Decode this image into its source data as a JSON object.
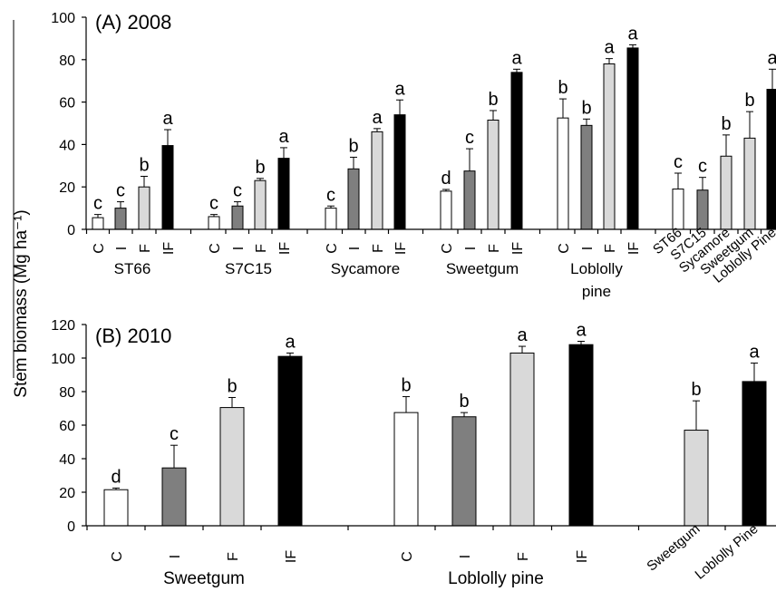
{
  "y_axis_label": "Stem biomass (Mg ha⁻¹)",
  "colors": {
    "C": "#ffffff",
    "I": "#7f7f7f",
    "F": "#d9d9d9",
    "IF": "#000000",
    "stroke": "#000000"
  },
  "chart_data": [
    {
      "type": "bar",
      "title": "(A) 2008",
      "ylim": [
        0,
        100
      ],
      "yticks": [
        0,
        20,
        40,
        60,
        80,
        100
      ],
      "groups": [
        {
          "name": "ST66",
          "bars": [
            {
              "label": "C",
              "value": 5.5,
              "error": 1.5,
              "letter": "c"
            },
            {
              "label": "I",
              "value": 10,
              "error": 3,
              "letter": "c"
            },
            {
              "label": "F",
              "value": 20,
              "error": 5,
              "letter": "b"
            },
            {
              "label": "IF",
              "value": 39.5,
              "error": 7.5,
              "letter": "a"
            }
          ]
        },
        {
          "name": "S7C15",
          "bars": [
            {
              "label": "C",
              "value": 6,
              "error": 1,
              "letter": "c"
            },
            {
              "label": "I",
              "value": 11,
              "error": 2,
              "letter": "c"
            },
            {
              "label": "F",
              "value": 23,
              "error": 1,
              "letter": "b"
            },
            {
              "label": "IF",
              "value": 33.5,
              "error": 5,
              "letter": "a"
            }
          ]
        },
        {
          "name": "Sycamore",
          "bars": [
            {
              "label": "C",
              "value": 10,
              "error": 1,
              "letter": "c"
            },
            {
              "label": "I",
              "value": 28.5,
              "error": 5.5,
              "letter": "b"
            },
            {
              "label": "F",
              "value": 46,
              "error": 1.5,
              "letter": "a"
            },
            {
              "label": "IF",
              "value": 54,
              "error": 7,
              "letter": "a"
            }
          ]
        },
        {
          "name": "Sweetgum",
          "bars": [
            {
              "label": "C",
              "value": 18,
              "error": 0.8,
              "letter": "d"
            },
            {
              "label": "I",
              "value": 27.5,
              "error": 10.5,
              "letter": "c"
            },
            {
              "label": "F",
              "value": 51.5,
              "error": 4.5,
              "letter": "b"
            },
            {
              "label": "IF",
              "value": 74,
              "error": 1.5,
              "letter": "a"
            }
          ]
        },
        {
          "name": "Loblolly pine",
          "bars": [
            {
              "label": "C",
              "value": 52.5,
              "error": 9,
              "letter": "b"
            },
            {
              "label": "I",
              "value": 49,
              "error": 3,
              "letter": "b"
            },
            {
              "label": "F",
              "value": 78,
              "error": 2.5,
              "letter": "a"
            },
            {
              "label": "IF",
              "value": 85.5,
              "error": 1.5,
              "letter": "a"
            }
          ]
        },
        {
          "name": "",
          "bars": [
            {
              "label": "ST66",
              "value": 19,
              "error": 7.5,
              "letter": "c",
              "fill": "C"
            },
            {
              "label": "S7C15",
              "value": 18.5,
              "error": 6,
              "letter": "c",
              "fill": "I"
            },
            {
              "label": "Sycamore",
              "value": 34.5,
              "error": 10,
              "letter": "b",
              "fill": "F"
            },
            {
              "label": "Sweetgum",
              "value": 43,
              "error": 12.5,
              "letter": "b",
              "fill": "F"
            },
            {
              "label": "Loblolly Pine",
              "value": 66,
              "error": 9.5,
              "letter": "a",
              "fill": "IF"
            }
          ]
        }
      ]
    },
    {
      "type": "bar",
      "title": "(B) 2010",
      "ylim": [
        0,
        120
      ],
      "yticks": [
        0,
        20,
        40,
        60,
        80,
        100,
        120
      ],
      "groups": [
        {
          "name": "Sweetgum",
          "bars": [
            {
              "label": "C",
              "value": 21.5,
              "error": 1,
              "letter": "d"
            },
            {
              "label": "I",
              "value": 34.5,
              "error": 13.5,
              "letter": "c"
            },
            {
              "label": "F",
              "value": 70.5,
              "error": 6,
              "letter": "b"
            },
            {
              "label": "IF",
              "value": 101,
              "error": 2,
              "letter": "a"
            }
          ]
        },
        {
          "name": "Loblolly pine",
          "bars": [
            {
              "label": "C",
              "value": 67.5,
              "error": 9.5,
              "letter": "b"
            },
            {
              "label": "I",
              "value": 65,
              "error": 2.5,
              "letter": "b"
            },
            {
              "label": "F",
              "value": 103,
              "error": 4,
              "letter": "a"
            },
            {
              "label": "IF",
              "value": 108,
              "error": 2,
              "letter": "a"
            }
          ]
        },
        {
          "name": "",
          "bars": [
            {
              "label": "Sweetgum",
              "value": 57,
              "error": 17.5,
              "letter": "b",
              "fill": "F"
            },
            {
              "label": "Loblolly Pine",
              "value": 86,
              "error": 11,
              "letter": "a",
              "fill": "IF"
            }
          ]
        }
      ]
    }
  ]
}
